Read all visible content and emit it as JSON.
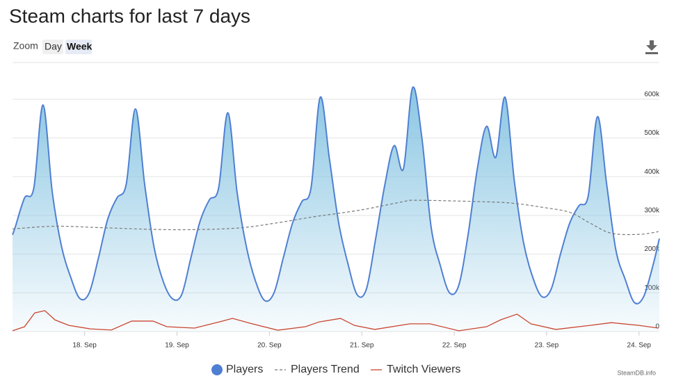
{
  "toolbar": {
    "zoom_label": "Zoom",
    "options": [
      "Day",
      "Week"
    ],
    "active": "Week"
  },
  "credit": "SteamDB.info",
  "chart_data": {
    "type": "area",
    "title": "Steam charts for last 7 days",
    "xlim": [
      17.22,
      24.22
    ],
    "xticks": [
      {
        "value": 18,
        "label": "18. Sep"
      },
      {
        "value": 19,
        "label": "19. Sep"
      },
      {
        "value": 20,
        "label": "20. Sep"
      },
      {
        "value": 21,
        "label": "21. Sep"
      },
      {
        "value": 22,
        "label": "22. Sep"
      },
      {
        "value": 23,
        "label": "23. Sep"
      },
      {
        "value": 24,
        "label": "24. Sep"
      }
    ],
    "ylim": [
      0,
      700000
    ],
    "yticks": [
      0,
      {
        "value": 100000,
        "label": "100k"
      },
      {
        "value": 200000,
        "label": "200k"
      },
      {
        "value": 300000,
        "label": "300k"
      },
      {
        "value": 400000,
        "label": "400k"
      },
      {
        "value": 500000,
        "label": "500k"
      },
      {
        "value": 600000,
        "label": "600k"
      }
    ],
    "grid": true,
    "series": [
      {
        "name": "Players",
        "color": "#4f7fd2",
        "fill": "#8ac6e3",
        "style": "area",
        "x": [
          17.22,
          17.25,
          17.35,
          17.45,
          17.55,
          17.65,
          17.75,
          17.85,
          17.95,
          18.05,
          18.15,
          18.25,
          18.35,
          18.45,
          18.55,
          18.65,
          18.75,
          18.85,
          18.95,
          19.05,
          19.15,
          19.25,
          19.35,
          19.45,
          19.55,
          19.65,
          19.75,
          19.85,
          19.95,
          20.05,
          20.15,
          20.25,
          20.35,
          20.45,
          20.55,
          20.65,
          20.75,
          20.85,
          20.95,
          21.05,
          21.15,
          21.25,
          21.35,
          21.45,
          21.55,
          21.65,
          21.75,
          21.85,
          21.95,
          22.05,
          22.15,
          22.25,
          22.35,
          22.45,
          22.55,
          22.65,
          22.75,
          22.85,
          22.95,
          23.05,
          23.15,
          23.25,
          23.35,
          23.45,
          23.55,
          23.65,
          23.75,
          23.85,
          23.95,
          24.05,
          24.15,
          24.22
        ],
        "values": [
          250000,
          270000,
          345000,
          370000,
          585000,
          360000,
          220000,
          140000,
          85000,
          100000,
          190000,
          290000,
          345000,
          380000,
          575000,
          380000,
          220000,
          130000,
          85000,
          95000,
          190000,
          285000,
          340000,
          370000,
          565000,
          360000,
          220000,
          130000,
          80000,
          100000,
          190000,
          280000,
          335000,
          370000,
          605000,
          445000,
          280000,
          175000,
          95000,
          110000,
          240000,
          380000,
          480000,
          420000,
          630000,
          500000,
          270000,
          170000,
          100000,
          120000,
          250000,
          420000,
          530000,
          450000,
          605000,
          390000,
          230000,
          140000,
          90000,
          110000,
          200000,
          280000,
          325000,
          350000,
          555000,
          380000,
          210000,
          135000,
          75000,
          90000,
          170000,
          240000
        ]
      },
      {
        "name": "Players Trend",
        "color": "#777777",
        "style": "dashed",
        "x": [
          17.22,
          17.68,
          18.21,
          18.96,
          19.64,
          20.09,
          20.47,
          20.99,
          21.44,
          21.59,
          22.35,
          22.65,
          22.95,
          23.25,
          23.47,
          23.7,
          24.0,
          24.21
        ],
        "values": [
          265000,
          272000,
          268000,
          263000,
          267000,
          281000,
          296000,
          314000,
          335000,
          339000,
          335000,
          331000,
          321000,
          308000,
          280000,
          254000,
          251000,
          258000
        ]
      },
      {
        "name": "Twitch Viewers",
        "color": "#c9452f",
        "style": "line",
        "x": [
          17.22,
          17.35,
          17.46,
          17.57,
          17.68,
          17.83,
          18.06,
          18.29,
          18.51,
          18.74,
          18.89,
          19.19,
          19.49,
          19.6,
          19.79,
          20.09,
          20.39,
          20.54,
          20.77,
          20.92,
          21.14,
          21.52,
          21.74,
          22.05,
          22.35,
          22.5,
          22.68,
          22.83,
          23.1,
          23.47,
          23.7,
          24.0,
          24.21
        ],
        "values": [
          2000,
          12500,
          48000,
          54000,
          30000,
          16000,
          7000,
          4000,
          27000,
          27000,
          12500,
          9000,
          27000,
          34000,
          21500,
          3500,
          12500,
          25000,
          34000,
          16000,
          5500,
          20000,
          20000,
          2000,
          12500,
          30000,
          45000,
          20000,
          5500,
          16000,
          23000,
          16000,
          9000
        ]
      }
    ]
  }
}
